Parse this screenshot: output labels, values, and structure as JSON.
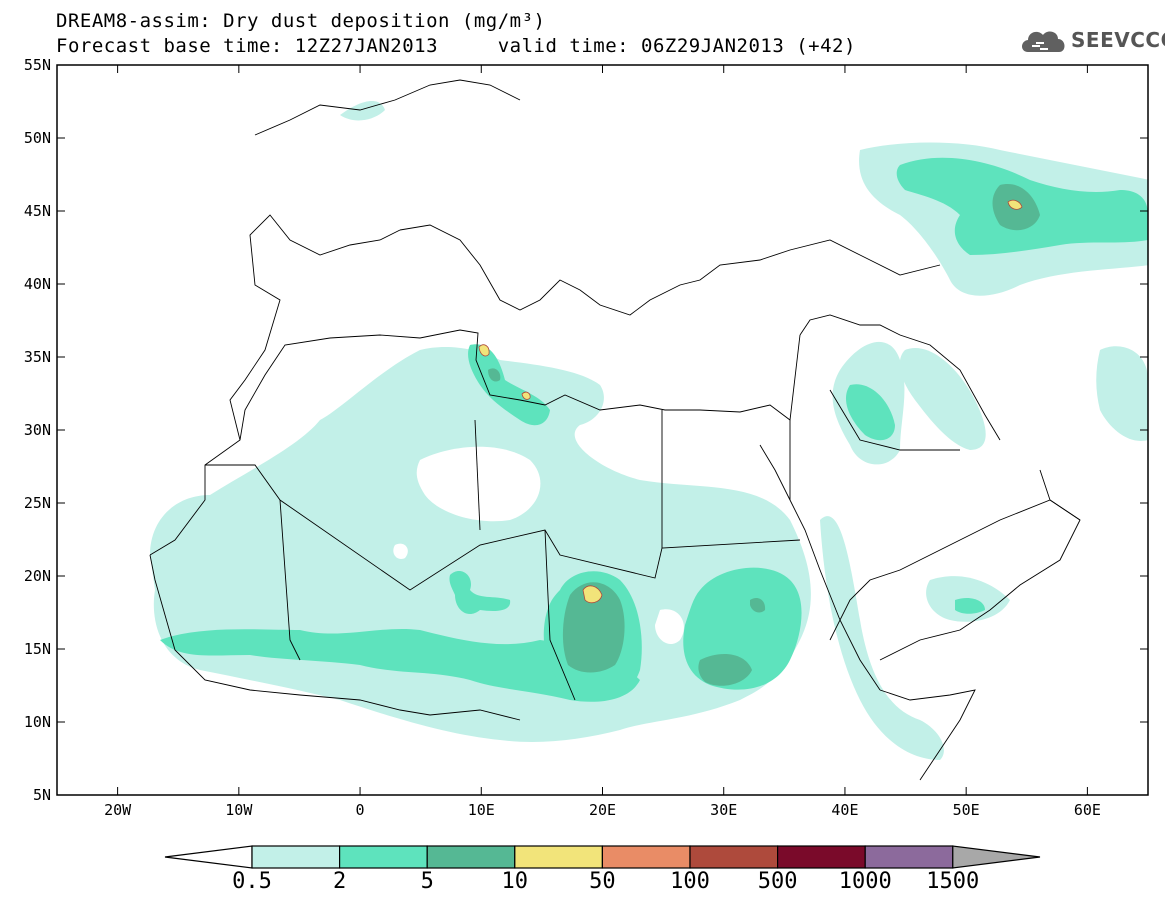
{
  "title": {
    "line1": "DREAM8-assim: Dry dust deposition (mg/m³)",
    "line2": "Forecast base time: 12Z27JAN2013     valid time: 06Z29JAN2013 (+42)"
  },
  "logo": {
    "text": "SEEVCCC",
    "icon": "cloud-icon"
  },
  "map": {
    "lon_range": [
      -25,
      65
    ],
    "lat_range": [
      5,
      55
    ],
    "lon_ticks": [
      {
        "value": -20,
        "label": "20W"
      },
      {
        "value": -10,
        "label": "10W"
      },
      {
        "value": 0,
        "label": "0"
      },
      {
        "value": 10,
        "label": "10E"
      },
      {
        "value": 20,
        "label": "20E"
      },
      {
        "value": 30,
        "label": "30E"
      },
      {
        "value": 40,
        "label": "40E"
      },
      {
        "value": 50,
        "label": "50E"
      },
      {
        "value": 60,
        "label": "60E"
      }
    ],
    "lat_ticks": [
      {
        "value": 55,
        "label": "55N"
      },
      {
        "value": 50,
        "label": "50N"
      },
      {
        "value": 45,
        "label": "45N"
      },
      {
        "value": 40,
        "label": "40N"
      },
      {
        "value": 35,
        "label": "35N"
      },
      {
        "value": 30,
        "label": "30N"
      },
      {
        "value": 25,
        "label": "25N"
      },
      {
        "value": 20,
        "label": "20N"
      },
      {
        "value": 15,
        "label": "15N"
      },
      {
        "value": 10,
        "label": "10N"
      },
      {
        "value": 5,
        "label": "5N"
      }
    ]
  },
  "colorbar": {
    "labels": [
      "0.5",
      "2",
      "5",
      "10",
      "50",
      "100",
      "500",
      "1000",
      "1500"
    ],
    "colors": [
      "#c2f0e8",
      "#5ee3bd",
      "#55b894",
      "#f2e47a",
      "#e98c66",
      "#ae4a3c",
      "#7a0a2a",
      "#8c6a9c"
    ],
    "under_color": "#ffffff",
    "over_color": "#a8a8a8"
  }
}
